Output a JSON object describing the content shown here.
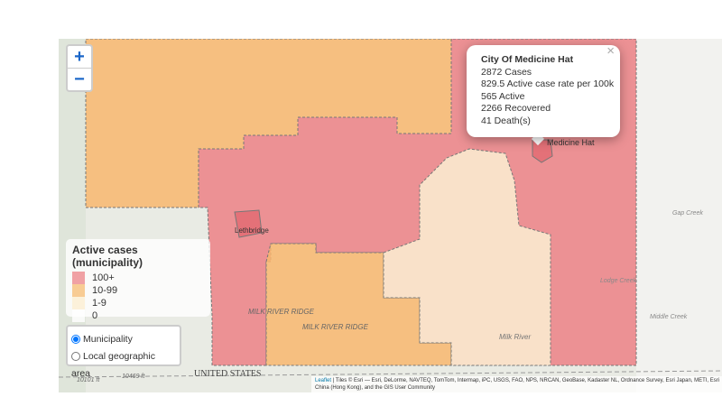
{
  "zoom": {
    "in": "+",
    "out": "−"
  },
  "popup": {
    "close": "×",
    "title": "City Of Medicine Hat",
    "lines": [
      "2872 Cases",
      "829.5 Active case rate per 100k",
      "565 Active",
      "2266 Recovered",
      "41 Death(s)"
    ]
  },
  "legend": {
    "title": "Active cases (municipality)",
    "items": [
      {
        "label": "100+",
        "color": "#ee8b8e"
      },
      {
        "label": "10-99",
        "color": "#f8c07a"
      },
      {
        "label": "1-9",
        "color": "#fcefd2"
      },
      {
        "label": "0",
        "color": "#ffffff"
      }
    ]
  },
  "layers": {
    "options": [
      "Municipality",
      "Local geographic area"
    ],
    "selected": 0
  },
  "map_labels": [
    "Medicine Hat",
    "Lethbridge",
    "MILK RIVER RIDGE",
    "MILK RIVER RIDGE",
    "UNITED STATES",
    "Milk River",
    "Lodge Creek",
    "Middle Creek",
    "Gap Creek",
    "10101 ft",
    "10469 ft"
  ],
  "attribution": {
    "link": "Leaflet",
    "text": "| Tiles © Esri — Esri, DeLorme, NAVTEQ, TomTom, Intermap, iPC, USGS, FAO, NPS, NRCAN, GeoBase, Kadaster NL, Ordnance Survey, Esri Japan, METI, Esri China (Hong Kong), and the GIS User Community"
  }
}
